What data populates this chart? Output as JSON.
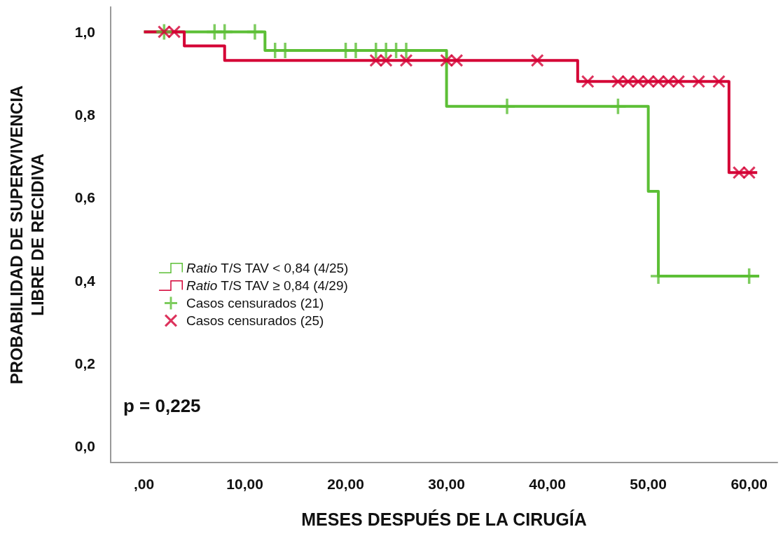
{
  "chart_data": {
    "type": "step",
    "xlabel": "MESES DESPUÉS DE LA CIRUGÍA",
    "ylabel": "PROBABILIDAD DE SUPERVIVENCIA\nLIBRE DE RECIDIVA",
    "xlim": [
      -3.3,
      62.8
    ],
    "xticks": [
      {
        "value": 0,
        "label": ",00"
      },
      {
        "value": 10,
        "label": "10,00"
      },
      {
        "value": 20,
        "label": "20,00"
      },
      {
        "value": 30,
        "label": "30,00"
      },
      {
        "value": 40,
        "label": "40,00"
      },
      {
        "value": 50,
        "label": "50,00"
      },
      {
        "value": 60,
        "label": "60,00"
      }
    ],
    "ylim": [
      -0.04,
      1.06
    ],
    "yticks": [
      {
        "value": 0,
        "label": "0,0"
      },
      {
        "value": 0.2,
        "label": "0,2"
      },
      {
        "value": 0.4,
        "label": "0,4"
      },
      {
        "value": 0.6,
        "label": "0,6"
      },
      {
        "value": 0.8,
        "label": "0,8"
      },
      {
        "value": 1,
        "label": "1,0"
      }
    ],
    "grid": false,
    "legend": "left",
    "annotations": [
      "p = 0,225"
    ],
    "series": [
      {
        "name": "Ratio T/S TAV < 0,84 (4/25)",
        "type": "step",
        "color": "#5cbf36",
        "x": [
          0,
          12,
          30,
          50,
          51,
          61
        ],
        "values": [
          1,
          0.955,
          0.82,
          0.615,
          0.41,
          0.41
        ]
      },
      {
        "name": "Ratio T/S TAV ≥ 0,84 (4/29)",
        "type": "step",
        "color": "#d40035",
        "x": [
          0,
          4,
          8,
          43,
          58,
          60.8
        ],
        "values": [
          1,
          0.966,
          0.931,
          0.88,
          0.66,
          0.66
        ]
      },
      {
        "name": "Casos censurados (21)",
        "type": "scatter",
        "marker": "plus",
        "color": "#5cbf36",
        "x": [
          2,
          7,
          8,
          11,
          13,
          14,
          20,
          21,
          23,
          24,
          25,
          26,
          36,
          47,
          51,
          60
        ],
        "values": [
          1,
          1,
          1,
          1,
          0.955,
          0.955,
          0.955,
          0.955,
          0.955,
          0.955,
          0.955,
          0.955,
          0.82,
          0.82,
          0.41,
          0.41
        ]
      },
      {
        "name": "Casos censurados (25)",
        "type": "scatter",
        "marker": "cross",
        "color": "#d40035",
        "x": [
          2,
          3,
          23,
          24,
          26,
          30,
          31,
          39,
          44,
          47,
          48,
          49,
          50,
          51,
          52,
          53,
          55,
          57,
          59,
          60
        ],
        "values": [
          1,
          1,
          0.931,
          0.931,
          0.931,
          0.931,
          0.931,
          0.931,
          0.88,
          0.88,
          0.88,
          0.88,
          0.88,
          0.88,
          0.88,
          0.88,
          0.88,
          0.88,
          0.66,
          0.66
        ]
      }
    ]
  }
}
